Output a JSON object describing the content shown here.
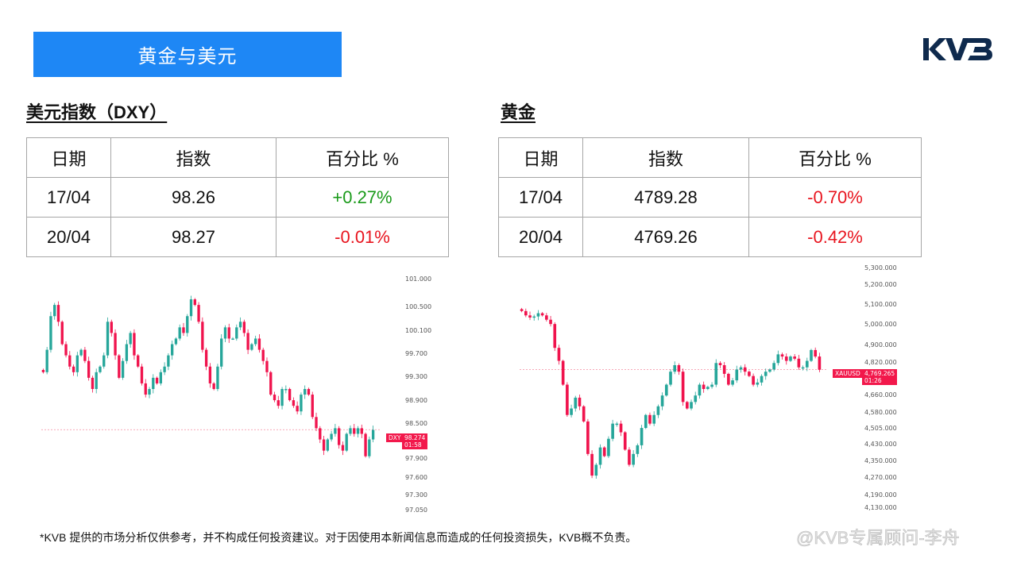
{
  "banner": {
    "title": "黄金与美元"
  },
  "logo": {
    "text": "KVB",
    "color": "#0f2a4d"
  },
  "dxy": {
    "section_title": "美元指数（DXY）",
    "table": {
      "headers": [
        "日期",
        "指数",
        "百分比 %"
      ],
      "rows": [
        {
          "date": "17/04",
          "value": "98.26",
          "pct": "+0.27%",
          "trend": "pos"
        },
        {
          "date": "20/04",
          "value": "98.27",
          "pct": "-0.01%",
          "trend": "neg"
        }
      ]
    },
    "chart": {
      "symbol_tag": "DXY",
      "price_tag": "98.274",
      "time_tag": "01:58",
      "y_ticks": [
        "101.000",
        "100.500",
        "100.100",
        "99.700",
        "99.300",
        "98.900",
        "98.500",
        "97.900",
        "97.600",
        "97.300",
        "97.050"
      ]
    }
  },
  "gold": {
    "section_title": "黄金",
    "table": {
      "headers": [
        "日期",
        "指数",
        "百分比 %"
      ],
      "rows": [
        {
          "date": "17/04",
          "value": "4789.28",
          "pct": "-0.70%",
          "trend": "neg"
        },
        {
          "date": "20/04",
          "value": "4769.26",
          "pct": "-0.42%",
          "trend": "neg"
        }
      ]
    },
    "chart": {
      "symbol_tag": "XAUUSD",
      "price_tag": "4,769.265",
      "time_tag": "01:26",
      "y_ticks": [
        "5,300.000",
        "5,200.000",
        "5,100.000",
        "5,000.000",
        "4,900.000",
        "4,820.000",
        "4,660.000",
        "4,580.000",
        "4,505.000",
        "4,430.000",
        "4,350.000",
        "4,270.000",
        "4,190.000",
        "4,130.000"
      ]
    }
  },
  "footer": {
    "disclaimer": "*KVB 提供的市场分析仅供参考，并不构成任何投资建议。对于因使用本新闻信息而造成的任何投资损失，KVB概不负责。"
  },
  "watermark": {
    "text": "@KVB专属顾问-李舟"
  },
  "colors": {
    "up": "#26a69a",
    "down": "#f0134d",
    "banner": "#1e87f5",
    "positive_text": "#1a9a1a",
    "negative_text": "#e8141e"
  },
  "chart_data": [
    {
      "type": "candlestick",
      "title": "DXY",
      "ylabel": "",
      "ylim": [
        97.05,
        101.0
      ],
      "y_ticks": [
        101.0,
        100.5,
        100.1,
        99.7,
        99.3,
        98.9,
        98.5,
        97.9,
        97.6,
        97.3,
        97.05
      ],
      "last_price": 98.274,
      "close_path": [
        99.3,
        99.7,
        100.3,
        100.5,
        100.2,
        99.8,
        99.6,
        99.4,
        99.3,
        99.6,
        99.7,
        99.5,
        99.2,
        99.0,
        99.3,
        99.4,
        99.6,
        100.2,
        100.0,
        99.6,
        99.2,
        99.5,
        99.8,
        100.0,
        99.6,
        99.4,
        99.1,
        98.9,
        99.0,
        99.2,
        99.1,
        99.3,
        99.4,
        99.6,
        99.8,
        99.9,
        100.1,
        100.0,
        100.3,
        100.6,
        100.5,
        100.2,
        99.7,
        99.4,
        99.1,
        99.0,
        99.4,
        99.9,
        100.1,
        99.9,
        99.9,
        100.1,
        100.2,
        100.0,
        99.7,
        99.8,
        99.9,
        99.7,
        99.5,
        99.3,
        98.9,
        98.8,
        98.7,
        99.0,
        99.0,
        98.8,
        98.7,
        98.6,
        98.9,
        99.0,
        98.9,
        98.5,
        98.3,
        98.1,
        97.9,
        98.1,
        98.2,
        98.3,
        98.0,
        97.9,
        98.2,
        98.3,
        98.2,
        98.3,
        98.2,
        97.8,
        98.1,
        98.27
      ]
    },
    {
      "type": "candlestick",
      "title": "XAUUSD",
      "ylabel": "",
      "ylim": [
        4130,
        5300
      ],
      "y_ticks": [
        5300,
        5200,
        5100,
        5000,
        4900,
        4820,
        4660,
        4580,
        4505,
        4430,
        4350,
        4270,
        4190,
        4130
      ],
      "last_price": 4769.265,
      "close_path": [
        5040,
        5020,
        5010,
        5015,
        5030,
        5020,
        5000,
        4980,
        4870,
        4810,
        4700,
        4560,
        4590,
        4640,
        4600,
        4530,
        4380,
        4280,
        4330,
        4410,
        4370,
        4450,
        4520,
        4520,
        4480,
        4400,
        4330,
        4380,
        4420,
        4500,
        4560,
        4520,
        4560,
        4600,
        4650,
        4700,
        4760,
        4790,
        4760,
        4620,
        4590,
        4620,
        4650,
        4700,
        4680,
        4690,
        4700,
        4800,
        4790,
        4750,
        4700,
        4720,
        4770,
        4780,
        4760,
        4740,
        4700,
        4710,
        4740,
        4760,
        4770,
        4800,
        4840,
        4830,
        4810,
        4830,
        4820,
        4780,
        4780,
        4810,
        4860,
        4830,
        4769
      ]
    }
  ]
}
